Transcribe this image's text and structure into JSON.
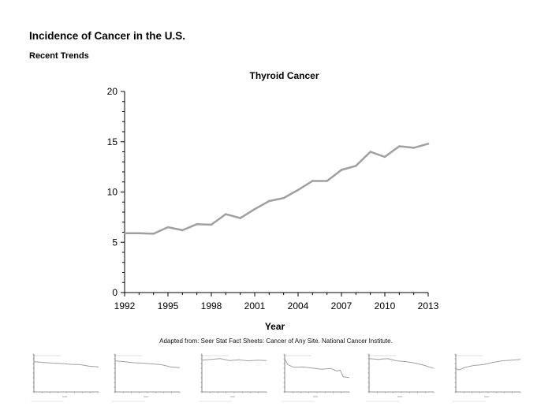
{
  "page": {
    "title": "Incidence of Cancer in the U.S.",
    "subtitle": "Recent Trends",
    "source": "Adapted from: Seer Stat Fact Sheets: Cancer of Any Site. National Cancer Institute."
  },
  "chart_data": [
    {
      "type": "line",
      "title": "Thyroid Cancer",
      "xlabel": "Year",
      "ylabel": "",
      "xlim": [
        1992,
        2013
      ],
      "ylim": [
        0,
        20
      ],
      "xticks": [
        1992,
        1995,
        1998,
        2001,
        2004,
        2007,
        2010,
        2013
      ],
      "yticks": [
        0,
        5,
        10,
        15,
        20
      ],
      "grid": false,
      "line_color": "#a0a0a0",
      "x": [
        1992,
        1993,
        1994,
        1995,
        1996,
        1997,
        1998,
        1999,
        2000,
        2001,
        2002,
        2003,
        2004,
        2005,
        2006,
        2007,
        2008,
        2009,
        2010,
        2011,
        2012,
        2013
      ],
      "series": [
        {
          "values": [
            5.9,
            5.9,
            5.85,
            6.5,
            6.2,
            6.8,
            6.75,
            7.8,
            7.4,
            8.3,
            9.1,
            9.4,
            10.2,
            11.1,
            11.1,
            12.2,
            12.6,
            14.0,
            13.5,
            14.55,
            14.4,
            14.8
          ]
        }
      ]
    },
    {
      "type": "line",
      "x": [
        1992,
        1995,
        1998,
        2001,
        2004,
        2007,
        2010,
        2013
      ],
      "series": [
        {
          "values": [
            0.8,
            0.78,
            0.76,
            0.75,
            0.73,
            0.72,
            0.68,
            0.66
          ]
        }
      ],
      "ylim": [
        0,
        1
      ]
    },
    {
      "type": "line",
      "x": [
        1992,
        1995,
        1998,
        2001,
        2004,
        2007,
        2010,
        2013
      ],
      "series": [
        {
          "values": [
            0.82,
            0.8,
            0.77,
            0.76,
            0.74,
            0.72,
            0.66,
            0.64
          ]
        }
      ],
      "ylim": [
        0,
        1
      ]
    },
    {
      "type": "line",
      "x": [
        1992,
        1995,
        1998,
        2001,
        2004,
        2007,
        2010,
        2013
      ],
      "series": [
        {
          "values": [
            0.84,
            0.86,
            0.88,
            0.83,
            0.85,
            0.82,
            0.84,
            0.83
          ]
        }
      ],
      "ylim": [
        0,
        1
      ]
    },
    {
      "type": "line",
      "x": [
        1992,
        1993,
        1995,
        1998,
        2001,
        2004,
        2007,
        2009,
        2010,
        2011,
        2013
      ],
      "series": [
        {
          "values": [
            0.88,
            0.72,
            0.65,
            0.66,
            0.63,
            0.6,
            0.62,
            0.55,
            0.58,
            0.4,
            0.38
          ]
        }
      ],
      "ylim": [
        0,
        1
      ]
    },
    {
      "type": "line",
      "x": [
        1992,
        1995,
        1998,
        2001,
        2004,
        2007,
        2010,
        2013
      ],
      "series": [
        {
          "values": [
            0.88,
            0.86,
            0.88,
            0.82,
            0.8,
            0.76,
            0.7,
            0.62
          ]
        }
      ],
      "ylim": [
        0,
        1
      ]
    },
    {
      "type": "line",
      "x": [
        1992,
        1993,
        1995,
        1998,
        2001,
        2004,
        2007,
        2010,
        2013
      ],
      "series": [
        {
          "values": [
            0.62,
            0.58,
            0.65,
            0.7,
            0.72,
            0.78,
            0.82,
            0.84,
            0.86
          ]
        }
      ],
      "ylim": [
        0,
        1
      ]
    }
  ]
}
